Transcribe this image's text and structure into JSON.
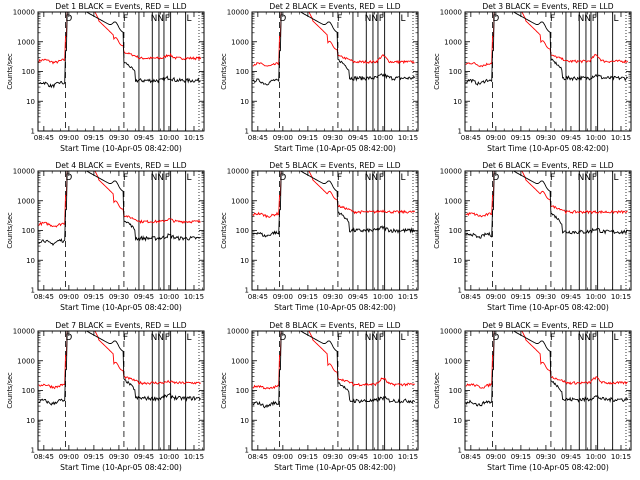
{
  "chart_data": {
    "type": "line",
    "layout": {
      "rows": 3,
      "cols": 3
    },
    "x_unit": "minutes since start time",
    "x_ticks": [
      3,
      18,
      33,
      48,
      63,
      78,
      93
    ],
    "x_tick_labels": [
      "08:45",
      "09:00",
      "09:15",
      "09:30",
      "09:45",
      "10:00",
      "10:15"
    ],
    "x_range": [
      -0.5,
      99
    ],
    "y_scale": "log",
    "y_range": [
      1,
      10000
    ],
    "y_ticks": [
      1,
      10,
      100,
      1000,
      10000
    ],
    "y_tick_labels": [
      "1",
      "10",
      "100",
      "1000",
      "10000"
    ],
    "ylabel": "Counts/sec",
    "xlabel": "Start Time (10-Apr-05 08:42:00)",
    "series_colors": {
      "events": "#000000",
      "lld": "#ff0000"
    },
    "interval_markers": {
      "dashed": [
        16,
        51
      ],
      "solid": [
        60,
        68,
        72,
        75,
        79,
        88
      ],
      "dotted_right": 96
    },
    "interval_labels": [
      {
        "text": "D",
        "x": 18
      },
      {
        "text": "F",
        "x": 52
      },
      {
        "text": "N",
        "x": 69
      },
      {
        "text": "N",
        "x": 73
      },
      {
        "text": "F",
        "x": 77
      },
      {
        "text": "L",
        "x": 90
      }
    ],
    "panels": [
      {
        "title": "Det 1 BLACK = Events, RED = LLD",
        "events_level": 50,
        "lld_level": 280,
        "lld_hump": 1.3
      },
      {
        "title": "Det 2 BLACK = Events, RED = LLD",
        "events_level": 60,
        "lld_level": 210,
        "lld_hump": 1.6
      },
      {
        "title": "Det 3 BLACK = Events, RED = LLD",
        "events_level": 60,
        "lld_level": 220,
        "lld_hump": 1.6
      },
      {
        "title": "Det 4 BLACK = Events, RED = LLD",
        "events_level": 55,
        "lld_level": 200,
        "lld_hump": 1.2
      },
      {
        "title": "Det 5 BLACK = Events, RED = LLD",
        "events_level": 100,
        "lld_level": 420,
        "lld_hump": 1.1
      },
      {
        "title": "Det 6 BLACK = Events, RED = LLD",
        "events_level": 90,
        "lld_level": 420,
        "lld_hump": 1.0
      },
      {
        "title": "Det 7 BLACK = Events, RED = LLD",
        "events_level": 55,
        "lld_level": 180,
        "lld_hump": 1.1
      },
      {
        "title": "Det 8 BLACK = Events, RED = LLD",
        "events_level": 45,
        "lld_level": 160,
        "lld_hump": 1.6
      },
      {
        "title": "Det 9 BLACK = Events, RED = LLD",
        "events_level": 50,
        "lld_level": 180,
        "lld_hump": 1.5
      }
    ]
  }
}
